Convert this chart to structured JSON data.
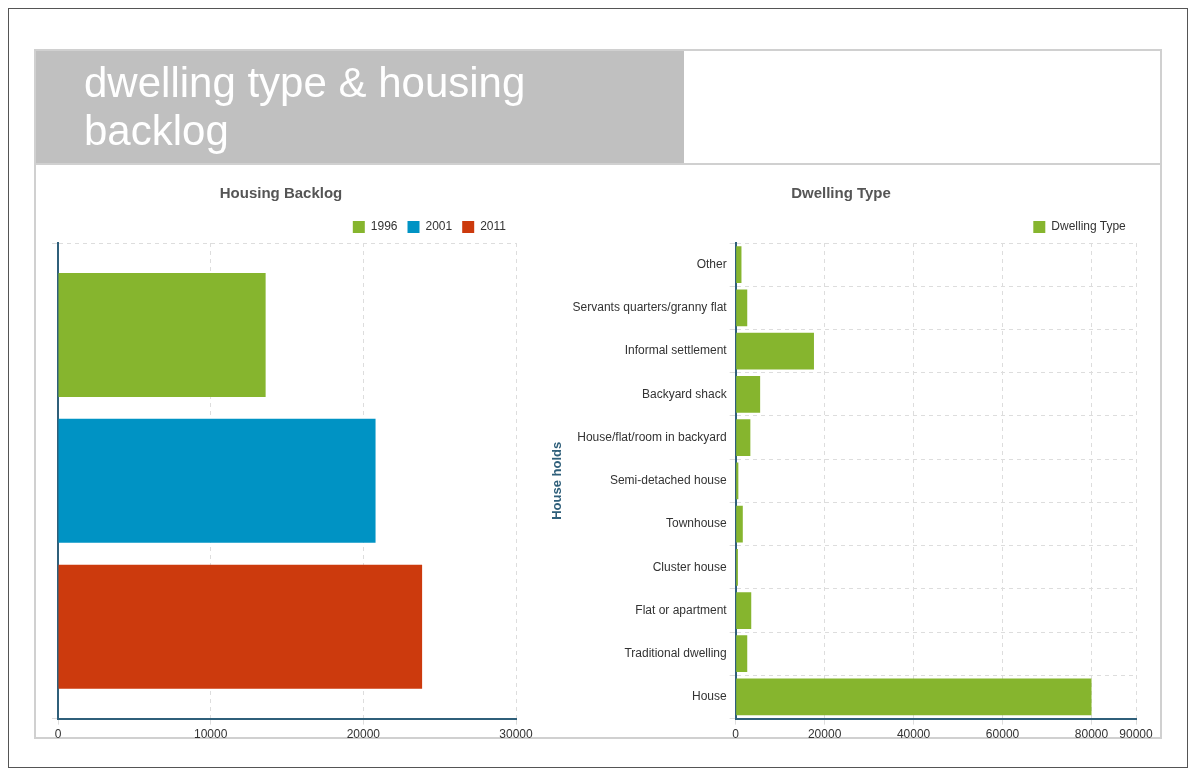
{
  "chart_data": [
    {
      "type": "bar",
      "title": "dwelling type & housing backlog",
      "subtitle": "Housing Backlog",
      "orientation": "horizontal",
      "categories": [
        null
      ],
      "series": [
        {
          "name": "1996",
          "color": "#86b52e",
          "values": [
            13600
          ]
        },
        {
          "name": "2001",
          "color": "#0093c4",
          "values": [
            20800
          ]
        },
        {
          "name": "2011",
          "color": "#cc3a0d",
          "values": [
            23850
          ]
        }
      ],
      "xlim": [
        0,
        30000
      ],
      "xticks": [
        0,
        10000,
        20000,
        30000
      ],
      "grid": true,
      "legend": "top right"
    },
    {
      "type": "bar",
      "subtitle": "Dwelling Type",
      "orientation": "horizontal",
      "ylabel": "House holds",
      "categories": [
        "Other",
        "Servants quarters/granny flat",
        "Informal settlement",
        "Backyard shack",
        "House/flat/room in backyard",
        "Semi-detached house",
        "Townhouse",
        "Cluster house",
        "Flat or apartment",
        "Traditional dwelling",
        "House"
      ],
      "series": [
        {
          "name": "Dwelling Type",
          "color": "#86b52e",
          "values": [
            1300,
            2600,
            17600,
            5500,
            3300,
            600,
            1600,
            500,
            3500,
            2600,
            80000
          ]
        }
      ],
      "xlim": [
        0,
        90000
      ],
      "xticks": [
        0,
        20000,
        40000,
        60000,
        80000,
        90000
      ],
      "grid": true,
      "legend": "top right"
    }
  ]
}
